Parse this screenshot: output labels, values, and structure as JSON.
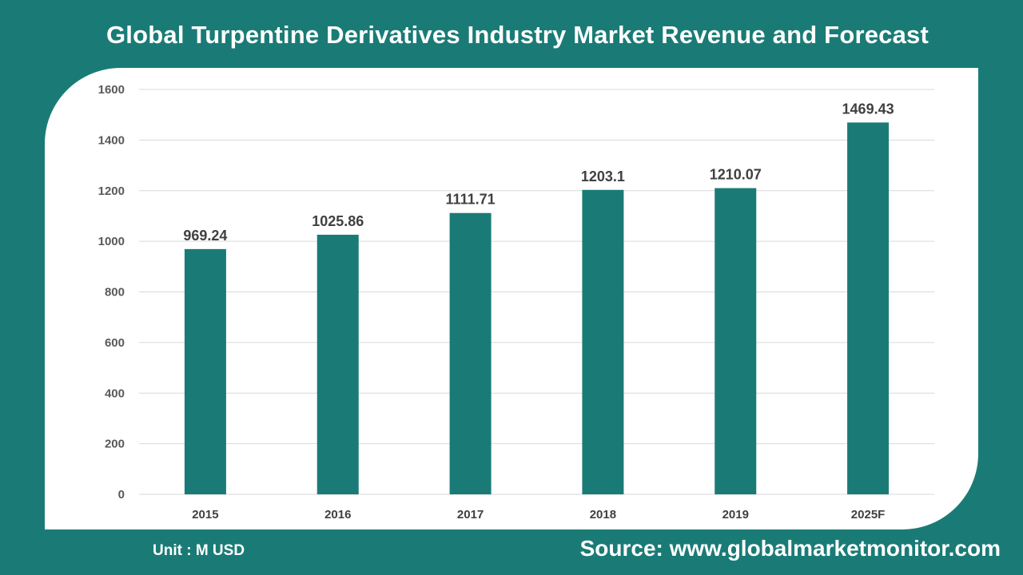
{
  "header": {
    "title": "Global Turpentine Derivatives Industry Market Revenue and Forecast"
  },
  "footer": {
    "unit": "Unit : M USD",
    "source": "Source: www.globalmarketmonitor.com"
  },
  "colors": {
    "background": "#1a7b76",
    "bar": "#1a7b76",
    "panel": "#ffffff",
    "gridline": "#d9d9d9"
  },
  "chart_data": {
    "type": "bar",
    "title": "Global Turpentine Derivatives Industry Market Revenue and Forecast",
    "categories": [
      "2015",
      "2016",
      "2017",
      "2018",
      "2019",
      "2025F"
    ],
    "values": [
      969.24,
      1025.86,
      1111.71,
      1203.1,
      1210.07,
      1469.43
    ],
    "data_labels": [
      "969.24",
      "1025.86",
      "1111.71",
      "1203.1",
      "1210.07",
      "1469.43"
    ],
    "yticks": [
      "0",
      "200",
      "400",
      "600",
      "800",
      "1000",
      "1200",
      "1400",
      "1600"
    ],
    "ylim": [
      0,
      1600
    ],
    "xlabel": "",
    "ylabel": "",
    "grid": true,
    "legend": "none"
  }
}
